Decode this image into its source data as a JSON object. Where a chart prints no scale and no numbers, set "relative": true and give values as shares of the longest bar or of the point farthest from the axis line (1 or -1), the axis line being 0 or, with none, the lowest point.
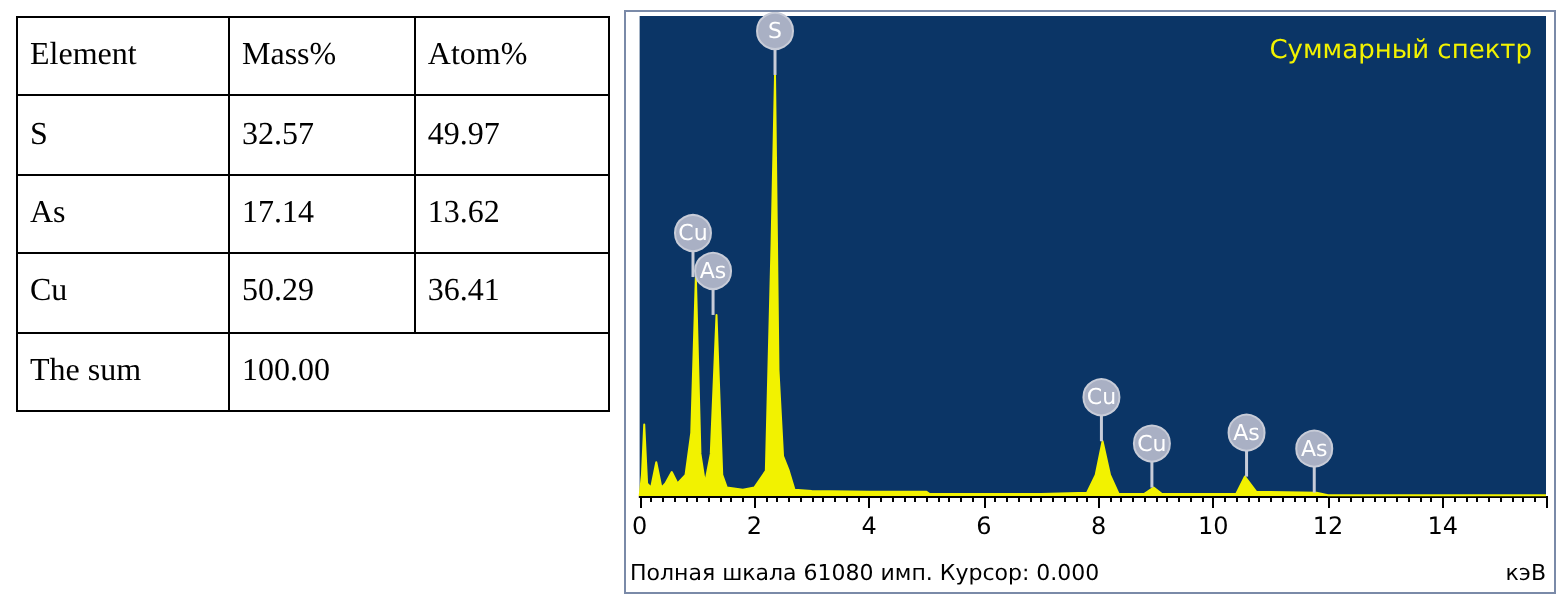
{
  "chart_data": [
    {
      "type": "other",
      "categories": [
        "Element",
        "Mass%",
        "Atom%"
      ],
      "cell_labels": [
        [
          "S",
          "32.57",
          "49.97"
        ],
        [
          "As",
          "17.14",
          "13.62"
        ],
        [
          "Cu",
          "50.29",
          "36.41"
        ],
        [
          "The sum",
          "100.00",
          null
        ]
      ]
    },
    {
      "type": "area",
      "title": "Суммарный спектр",
      "xlabel": "кэВ",
      "relative": true,
      "color": "#f2f200",
      "x": [
        0.0,
        0.04,
        0.08,
        0.13,
        0.2,
        0.29,
        0.38,
        0.45,
        0.56,
        0.66,
        0.8,
        0.9,
        0.98,
        1.06,
        1.14,
        1.24,
        1.34,
        1.44,
        1.52,
        1.8,
        2.0,
        2.2,
        2.3,
        2.36,
        2.42,
        2.5,
        2.6,
        2.7,
        3.0,
        4.0,
        5.0,
        5.05,
        7.0,
        7.8,
        7.95,
        8.07,
        8.2,
        8.35,
        8.8,
        8.96,
        9.1,
        10.4,
        10.55,
        10.75,
        11.8,
        12.0,
        15.8
      ],
      "values": [
        0,
        0.05,
        0.17,
        0.03,
        0.02,
        0.08,
        0.02,
        0.03,
        0.057,
        0.03,
        0.05,
        0.15,
        0.52,
        0.1,
        0.03,
        0.1,
        0.43,
        0.05,
        0.02,
        0.015,
        0.02,
        0.06,
        0.6,
        1,
        0.3,
        0.095,
        0.06,
        0.015,
        0.012,
        0.01,
        0.01,
        0.005,
        0.005,
        0.008,
        0.05,
        0.13,
        0.05,
        0.005,
        0.005,
        0.02,
        0.005,
        0.005,
        0.046,
        0.01,
        0.008,
        0.002,
        0.002
      ],
      "xlim": [
        0,
        15.8
      ],
      "xticks": [
        0,
        2,
        4,
        6,
        8,
        10,
        12,
        14
      ],
      "grid": false,
      "annotations": [
        {
          "text": "S",
          "x": 2.36,
          "y": 1
        },
        {
          "text": "Cu",
          "x": 0.93,
          "y": 0.52
        },
        {
          "text": "As",
          "x": 1.28,
          "y": 0.43
        },
        {
          "text": "Cu",
          "x": 8.05,
          "y": 0.13
        },
        {
          "text": "Cu",
          "x": 8.93,
          "y": 0.02
        },
        {
          "text": "As",
          "x": 10.58,
          "y": 0.046
        },
        {
          "text": "As",
          "x": 11.76,
          "y": 0.008
        },
        "Полная шкала 61080 имп. Курсор: 0.000"
      ]
    }
  ]
}
